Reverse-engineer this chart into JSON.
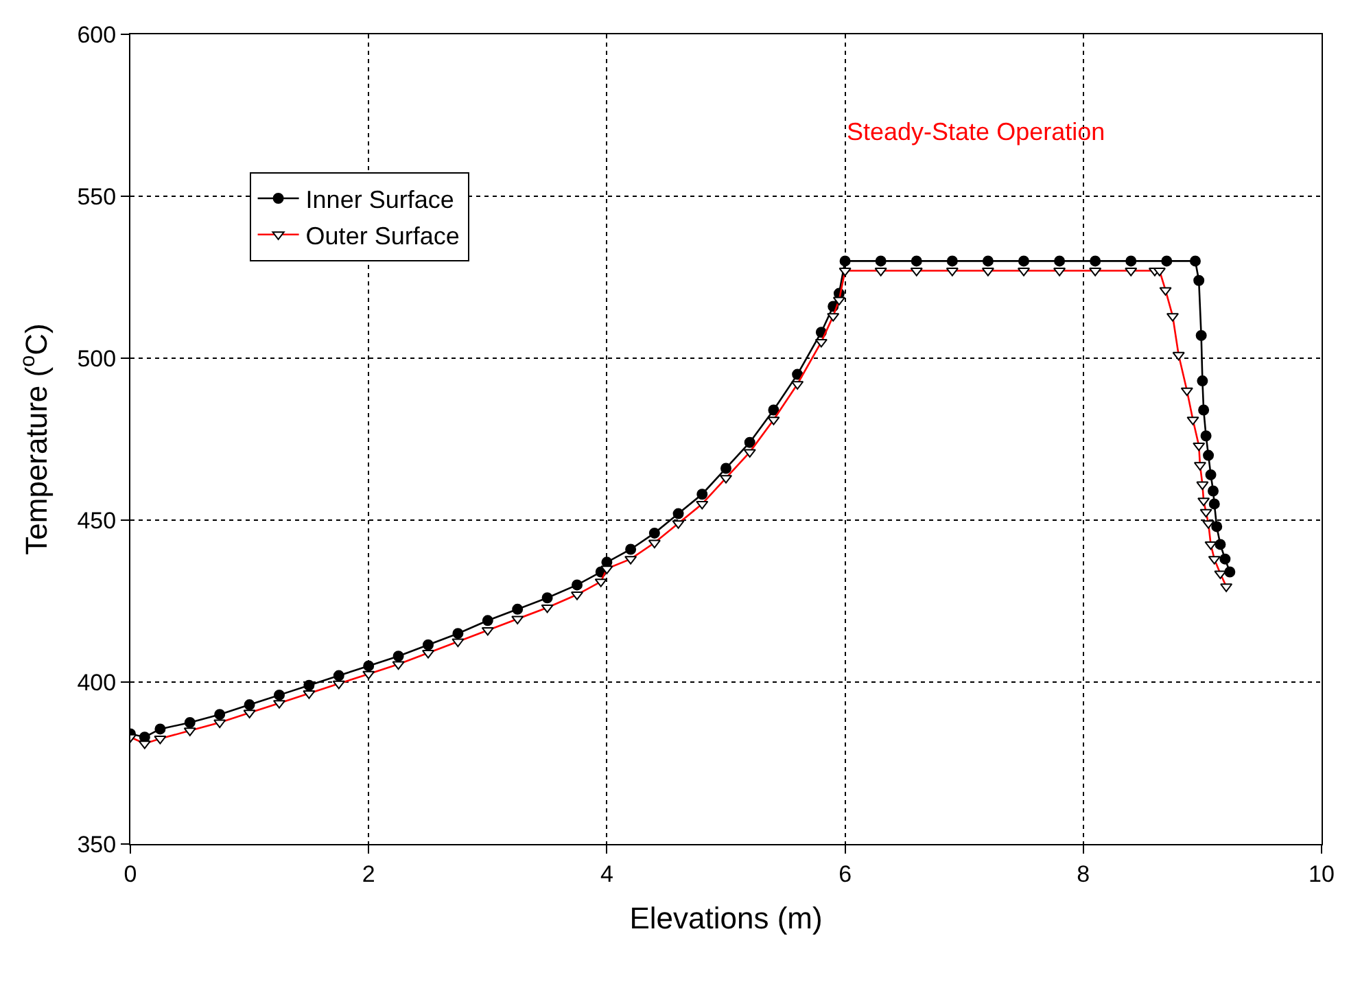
{
  "chart_data": {
    "type": "line",
    "xlabel": "Elevations (m)",
    "ylabel": "Temperature ($^{o}$C)",
    "xlim": [
      0,
      10
    ],
    "xticks": [
      0,
      2,
      4,
      6,
      8,
      10
    ],
    "ylim": [
      350,
      600
    ],
    "yticks": [
      350,
      400,
      450,
      500,
      550,
      600
    ],
    "grid": true,
    "legend": "top left",
    "line_style": "solid",
    "annotations": [
      "Steady-State Operation"
    ],
    "series": [
      {
        "name": "Inner Surface",
        "color": "#000000",
        "marker": "circle",
        "x": [
          0,
          0.12,
          0.25,
          0.5,
          0.75,
          1,
          1.25,
          1.5,
          1.75,
          2,
          2.25,
          2.5,
          2.75,
          3,
          3.25,
          3.5,
          3.75,
          3.95,
          4.0,
          4.2,
          4.4,
          4.6,
          4.8,
          5.0,
          5.2,
          5.4,
          5.6,
          5.8,
          5.9,
          5.95,
          6.0,
          6.3,
          6.6,
          6.9,
          7.2,
          7.5,
          7.8,
          8.1,
          8.4,
          8.7,
          8.94,
          8.97,
          8.99,
          9.0,
          9.01,
          9.03,
          9.05,
          9.07,
          9.09,
          9.1,
          9.12,
          9.15,
          9.19,
          9.23
        ],
        "values": [
          384,
          383,
          385.5,
          387.5,
          390,
          393,
          396,
          399,
          402,
          405,
          408,
          411.5,
          415,
          419,
          422.5,
          426,
          430,
          434,
          437,
          441,
          446,
          452,
          458,
          466,
          474,
          484,
          495,
          508,
          516,
          520,
          530,
          530,
          530,
          530,
          530,
          530,
          530,
          530,
          530,
          530,
          530,
          524,
          507,
          493,
          484,
          476,
          470,
          464,
          459,
          455,
          448,
          442.5,
          438,
          434
        ]
      },
      {
        "name": "Outer Surface",
        "color": "#ff0000",
        "marker": "triangle",
        "x": [
          0,
          0.12,
          0.25,
          0.5,
          0.75,
          1,
          1.25,
          1.5,
          1.75,
          2,
          2.25,
          2.5,
          2.75,
          3,
          3.25,
          3.5,
          3.75,
          3.95,
          4.0,
          4.2,
          4.4,
          4.6,
          4.8,
          5.0,
          5.2,
          5.4,
          5.6,
          5.8,
          5.9,
          5.95,
          6.0,
          6.3,
          6.6,
          6.9,
          7.2,
          7.5,
          7.8,
          8.1,
          8.4,
          8.6,
          8.64,
          8.69,
          8.75,
          8.8,
          8.87,
          8.92,
          8.97,
          8.98,
          9.0,
          9.01,
          9.03,
          9.05,
          9.07,
          9.1,
          9.15,
          9.2
        ],
        "values": [
          383,
          381,
          382.5,
          385,
          387.5,
          390.5,
          393.5,
          396.5,
          399.5,
          402.5,
          405.5,
          409,
          412.5,
          416,
          419.5,
          423,
          427,
          431,
          435,
          438,
          443,
          449,
          455,
          463,
          471,
          481,
          492,
          505,
          513,
          518,
          527,
          527,
          527,
          527,
          527,
          527,
          527,
          527,
          527,
          527,
          527,
          521,
          513,
          501,
          490,
          481,
          473,
          467,
          461,
          456,
          452.5,
          449,
          442.5,
          438,
          433.5,
          429.5
        ]
      }
    ]
  }
}
